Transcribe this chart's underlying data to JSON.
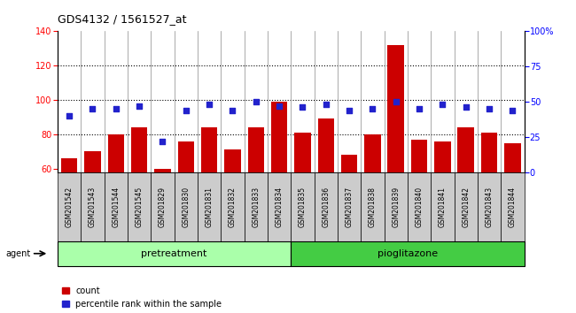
{
  "title": "GDS4132 / 1561527_at",
  "samples": [
    "GSM201542",
    "GSM201543",
    "GSM201544",
    "GSM201545",
    "GSM201829",
    "GSM201830",
    "GSM201831",
    "GSM201832",
    "GSM201833",
    "GSM201834",
    "GSM201835",
    "GSM201836",
    "GSM201837",
    "GSM201838",
    "GSM201839",
    "GSM201840",
    "GSM201841",
    "GSM201842",
    "GSM201843",
    "GSM201844"
  ],
  "counts": [
    66,
    70,
    80,
    84,
    60,
    76,
    84,
    71,
    84,
    99,
    81,
    89,
    68,
    80,
    132,
    77,
    76,
    84,
    81,
    75
  ],
  "percentiles": [
    40,
    45,
    45,
    47,
    22,
    44,
    48,
    44,
    50,
    47,
    46,
    48,
    44,
    45,
    50,
    45,
    48,
    46,
    45,
    44
  ],
  "pretreatment_count": 10,
  "pioglitazone_count": 10,
  "bar_color": "#cc0000",
  "dot_color": "#2222cc",
  "ylim_left": [
    58,
    140
  ],
  "ylim_right": [
    0,
    100
  ],
  "yticks_left": [
    60,
    80,
    100,
    120,
    140
  ],
  "yticks_right": [
    0,
    25,
    50,
    75,
    100
  ],
  "grid_values": [
    80,
    100,
    120
  ],
  "plot_bg": "#ffffff",
  "tick_cell_bg": "#cccccc",
  "pretreatment_color": "#aaffaa",
  "pioglitazone_color": "#44cc44",
  "figure_bg": "#ffffff"
}
